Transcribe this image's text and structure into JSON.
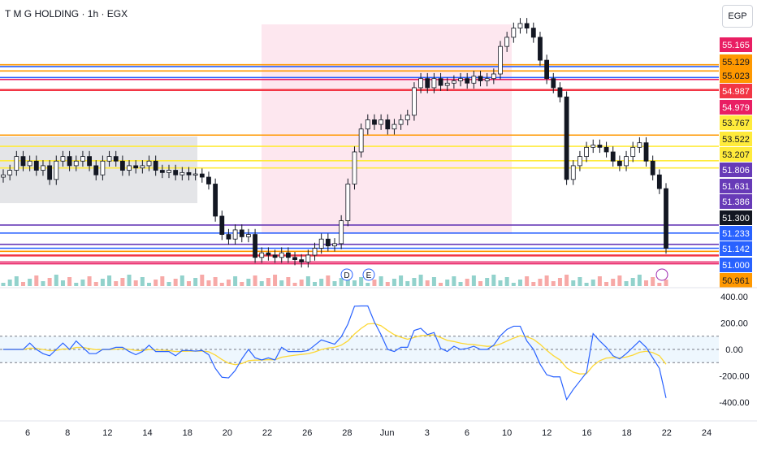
{
  "symbol_title": "T M G HOLDING · 1h · EGX",
  "currency": "EGP",
  "colors": {
    "up": "#131722",
    "down": "#131722",
    "orange": "#ff9800",
    "blue": "#2962ff",
    "red": "#f23645",
    "yellow": "#ffeb3b",
    "purple": "#673ab7",
    "pink": "#e91e63",
    "cci": "#2962ff",
    "cci_ma": "#fdd835",
    "vol_up": "#26a69a",
    "vol_down": "#ef5350"
  },
  "chart_data": [
    {
      "type": "candlestick",
      "x_ticks": [
        "6",
        "8",
        "12",
        "14",
        "18",
        "20",
        "22",
        "26",
        "28",
        "Jun",
        "3",
        "6",
        "10",
        "12",
        "16",
        "18",
        "22",
        "24"
      ],
      "price_axis_labels": [
        "55.165",
        "55.129",
        "55.023",
        "54.987",
        "54.979",
        "53.767",
        "53.522",
        "53.207",
        "51.806",
        "51.631",
        "51.386",
        "51.300",
        "51.233",
        "51.142",
        "51.000",
        "50.961"
      ],
      "last_price": 51.3,
      "horizontal_levels": [
        {
          "price": 55.3,
          "color": "orange"
        },
        {
          "price": 55.26,
          "color": "blue"
        },
        {
          "price": 55.165,
          "color": "orange"
        },
        {
          "price": 55.023,
          "color": "blue"
        },
        {
          "price": 54.979,
          "color": "pink"
        },
        {
          "price": 54.75,
          "color": "red"
        },
        {
          "price": 53.767,
          "color": "orange"
        },
        {
          "price": 53.522,
          "color": "yellow"
        },
        {
          "price": 53.207,
          "color": "yellow"
        },
        {
          "price": 53.05,
          "color": "yellow"
        },
        {
          "price": 51.806,
          "color": "purple"
        },
        {
          "price": 51.631,
          "color": "blue"
        },
        {
          "price": 51.386,
          "color": "purple"
        },
        {
          "price": 51.3,
          "color": "blue"
        },
        {
          "price": 51.233,
          "color": "orange"
        },
        {
          "price": 51.142,
          "color": "red"
        },
        {
          "price": 51.0,
          "color": "pink"
        },
        {
          "price": 50.961,
          "color": "pink"
        }
      ],
      "closes": [
        52.9,
        53.0,
        53.3,
        53.1,
        53.2,
        53.0,
        53.1,
        52.8,
        53.2,
        53.3,
        53.1,
        53.2,
        53.3,
        53.1,
        52.9,
        53.2,
        53.3,
        53.2,
        53.0,
        53.1,
        53.05,
        53.1,
        53.2,
        53.0,
        52.95,
        53.0,
        52.9,
        52.95,
        52.9,
        52.92,
        52.85,
        52.7,
        52.0,
        51.6,
        51.5,
        51.7,
        51.55,
        51.6,
        51.1,
        51.2,
        51.15,
        51.1,
        51.2,
        51.1,
        51.05,
        51.0,
        51.15,
        51.3,
        51.5,
        51.35,
        51.4,
        51.9,
        52.7,
        53.4,
        53.9,
        54.1,
        54.0,
        54.1,
        53.9,
        54.0,
        54.1,
        54.2,
        54.8,
        55.0,
        54.8,
        55.0,
        54.85,
        54.9,
        54.95,
        55.0,
        54.9,
        55.05,
        54.95,
        55.0,
        55.1,
        55.7,
        55.9,
        56.1,
        56.2,
        56.1,
        55.9,
        55.4,
        55.0,
        54.8,
        54.6,
        52.8,
        53.1,
        53.3,
        53.5,
        53.55,
        53.5,
        53.4,
        53.2,
        53.1,
        53.3,
        53.5,
        53.6,
        53.2,
        52.9,
        52.6,
        51.3
      ],
      "cci_axis": [
        400,
        200,
        0,
        -200,
        -400
      ],
      "cci_band": [
        100,
        -100
      ],
      "markers": [
        "D",
        "E"
      ]
    }
  ]
}
